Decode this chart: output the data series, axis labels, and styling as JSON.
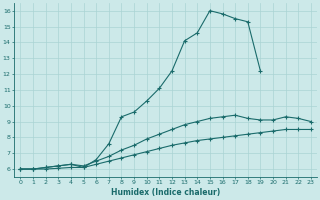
{
  "xlabel": "Humidex (Indice chaleur)",
  "xlim": [
    -0.5,
    23.5
  ],
  "ylim": [
    5.5,
    16.5
  ],
  "xticks": [
    0,
    1,
    2,
    3,
    4,
    5,
    6,
    7,
    8,
    9,
    10,
    11,
    12,
    13,
    14,
    15,
    16,
    17,
    18,
    19,
    20,
    21,
    22,
    23
  ],
  "yticks": [
    6,
    7,
    8,
    9,
    10,
    11,
    12,
    13,
    14,
    15,
    16
  ],
  "background_color": "#cce9e9",
  "grid_color": "#aad4d4",
  "line_color": "#1a6b6b",
  "line1_x": [
    0,
    1,
    2,
    3,
    4,
    5,
    6,
    7,
    8,
    9,
    10,
    11,
    12,
    13,
    14,
    15,
    16,
    17,
    18,
    19
  ],
  "line1_y": [
    6.0,
    6.0,
    6.1,
    6.2,
    6.3,
    6.1,
    6.6,
    7.6,
    9.3,
    9.6,
    10.3,
    11.1,
    12.2,
    14.1,
    14.6,
    16.0,
    15.8,
    15.5,
    15.3,
    12.2
  ],
  "line2_x": [
    0,
    1,
    2,
    3,
    4,
    5,
    6,
    7,
    8,
    9,
    10,
    11,
    12,
    13,
    14,
    15,
    16,
    17,
    18,
    19,
    20,
    21,
    22,
    23
  ],
  "line2_y": [
    6.0,
    6.0,
    6.1,
    6.2,
    6.3,
    6.2,
    6.5,
    6.8,
    7.2,
    7.5,
    7.9,
    8.2,
    8.5,
    8.8,
    9.0,
    9.2,
    9.3,
    9.4,
    9.2,
    9.1,
    9.1,
    9.3,
    9.2,
    9.0
  ],
  "line3_x": [
    0,
    1,
    2,
    3,
    4,
    5,
    6,
    7,
    8,
    9,
    10,
    11,
    12,
    13,
    14,
    15,
    16,
    17,
    18,
    19,
    20,
    21,
    22,
    23
  ],
  "line3_y": [
    6.0,
    6.0,
    6.0,
    6.05,
    6.1,
    6.1,
    6.3,
    6.5,
    6.7,
    6.9,
    7.1,
    7.3,
    7.5,
    7.65,
    7.8,
    7.9,
    8.0,
    8.1,
    8.2,
    8.3,
    8.4,
    8.5,
    8.5,
    8.5
  ]
}
